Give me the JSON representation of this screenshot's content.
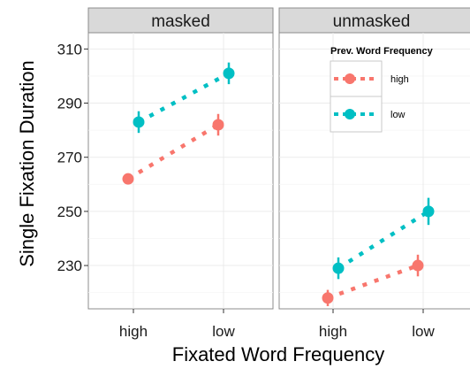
{
  "chart_data": {
    "type": "line",
    "title": "",
    "xlabel": "Fixated Word Frequency",
    "ylabel": "Single Fixation Duration",
    "categories": [
      "high",
      "low"
    ],
    "y_ticks": [
      230,
      250,
      270,
      290,
      310
    ],
    "ylim": [
      214,
      316
    ],
    "grid": true,
    "legend": {
      "title": "Prev. Word Frequency",
      "placement": "top-right inside panel",
      "entries": [
        "high",
        "low"
      ]
    },
    "panels": [
      {
        "name": "masked",
        "series": [
          {
            "name": "high",
            "color": "#F8766D",
            "values": [
              262,
              282
            ],
            "error": [
              1.5,
              4
            ]
          },
          {
            "name": "low",
            "color": "#00BFC4",
            "values": [
              283,
              301
            ],
            "error": [
              4,
              4
            ]
          }
        ]
      },
      {
        "name": "unmasked",
        "series": [
          {
            "name": "high",
            "color": "#F8766D",
            "values": [
              218,
              230
            ],
            "error": [
              3,
              4
            ]
          },
          {
            "name": "low",
            "color": "#00BFC4",
            "values": [
              229,
              250
            ],
            "error": [
              4,
              5
            ]
          }
        ]
      }
    ]
  }
}
